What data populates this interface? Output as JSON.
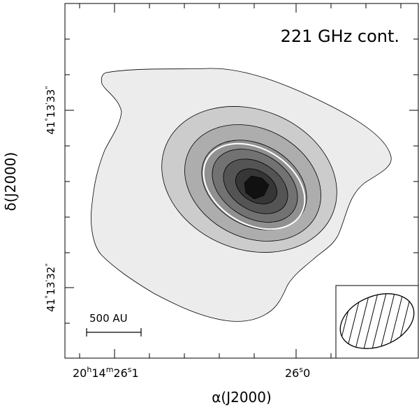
{
  "chart_data": {
    "type": "contour",
    "title": "221 GHz cont.",
    "xlabel": "α(J2000)",
    "ylabel": "δ(J2000)",
    "x_ticks": [
      {
        "hh": "20",
        "mm": "14",
        "ss": "26",
        "frac": "1",
        "ra_sec": 26.1
      },
      {
        "ss": "26",
        "frac": "0",
        "ra_sec": 26.0
      }
    ],
    "y_ticks": [
      {
        "deg": "41",
        "am": "13",
        "as": "33",
        "dec_arcsec": 33
      },
      {
        "deg": "41",
        "am": "13",
        "as": "32",
        "dec_arcsec": 32
      }
    ],
    "units": {
      "h": "h",
      "m": "m",
      "s": "s",
      "deg": "°",
      "am": "'",
      "as": "\""
    },
    "scale_bar": {
      "label": "500 AU"
    },
    "contour_levels": 7,
    "colors": {
      "levels": [
        "#ececec",
        "#cccccc",
        "#adadad",
        "#909090",
        "#727272",
        "#545454",
        "#363636",
        "#111111"
      ],
      "highlight_contour": "#ffffff",
      "frame": "#000000"
    }
  }
}
